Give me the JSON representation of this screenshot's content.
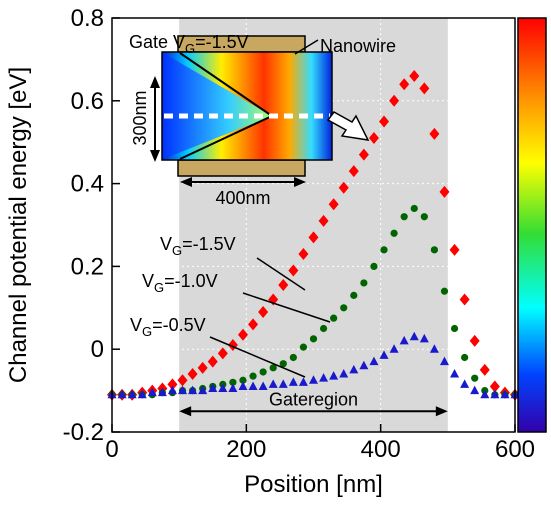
{
  "chart_data": {
    "type": "scatter",
    "x_label": "Position [nm]",
    "y_label": "Channel potential energy [eV]",
    "xlim": [
      0,
      600
    ],
    "ylim": [
      -0.2,
      0.8
    ],
    "xticks": [
      0,
      200,
      400,
      600
    ],
    "yticks": [
      -0.2,
      0,
      0.2,
      0.4,
      0.6,
      0.8
    ],
    "grid": true,
    "shaded_region": [
      100,
      500
    ],
    "shaded_label": "Gateregion",
    "x": [
      0,
      15,
      30,
      45,
      60,
      75,
      90,
      105,
      120,
      135,
      150,
      165,
      180,
      195,
      210,
      225,
      240,
      255,
      270,
      285,
      300,
      315,
      330,
      345,
      360,
      375,
      390,
      405,
      420,
      435,
      450,
      465,
      480,
      495,
      510,
      525,
      540,
      555,
      570,
      585,
      600
    ],
    "series": [
      {
        "label": {
          "main": "V",
          "sub": "G",
          "rest": "=-1.5V"
        },
        "color": "#ff0000",
        "marker": "diamond",
        "values": [
          -0.11,
          -0.11,
          -0.11,
          -0.105,
          -0.1,
          -0.095,
          -0.085,
          -0.075,
          -0.06,
          -0.045,
          -0.03,
          -0.01,
          0.01,
          0.035,
          0.06,
          0.09,
          0.12,
          0.155,
          0.19,
          0.23,
          0.27,
          0.31,
          0.35,
          0.39,
          0.43,
          0.47,
          0.51,
          0.55,
          0.6,
          0.64,
          0.66,
          0.63,
          0.52,
          0.38,
          0.24,
          0.12,
          0.02,
          -0.05,
          -0.09,
          -0.105,
          -0.11
        ]
      },
      {
        "label": {
          "main": "V",
          "sub": "G",
          "rest": "=-1.0V"
        },
        "color": "#006400",
        "marker": "circle",
        "values": [
          -0.11,
          -0.11,
          -0.11,
          -0.11,
          -0.11,
          -0.105,
          -0.105,
          -0.1,
          -0.1,
          -0.095,
          -0.09,
          -0.085,
          -0.08,
          -0.075,
          -0.065,
          -0.055,
          -0.045,
          -0.035,
          -0.02,
          0.005,
          0.025,
          0.05,
          0.075,
          0.1,
          0.13,
          0.16,
          0.2,
          0.24,
          0.28,
          0.32,
          0.34,
          0.32,
          0.24,
          0.14,
          0.05,
          -0.02,
          -0.07,
          -0.1,
          -0.11,
          -0.11,
          -0.11
        ]
      },
      {
        "label": {
          "main": "V",
          "sub": "G",
          "rest": "=-0.5V"
        },
        "color": "#1a1acc",
        "marker": "triangle",
        "values": [
          -0.11,
          -0.11,
          -0.11,
          -0.11,
          -0.105,
          -0.105,
          -0.1,
          -0.1,
          -0.1,
          -0.1,
          -0.095,
          -0.095,
          -0.095,
          -0.09,
          -0.09,
          -0.09,
          -0.085,
          -0.085,
          -0.08,
          -0.08,
          -0.075,
          -0.07,
          -0.065,
          -0.06,
          -0.05,
          -0.04,
          -0.03,
          -0.015,
          0,
          0.02,
          0.03,
          0.025,
          0,
          -0.03,
          -0.06,
          -0.085,
          -0.1,
          -0.11,
          -0.11,
          -0.11,
          -0.11
        ]
      }
    ],
    "inset": {
      "gate_label": {
        "main": "Gate V",
        "sub": "G",
        "rest": "=-1.5V"
      },
      "wire_label": "Nanowire",
      "height_label": "300nm",
      "length_label": "400nm"
    }
  }
}
